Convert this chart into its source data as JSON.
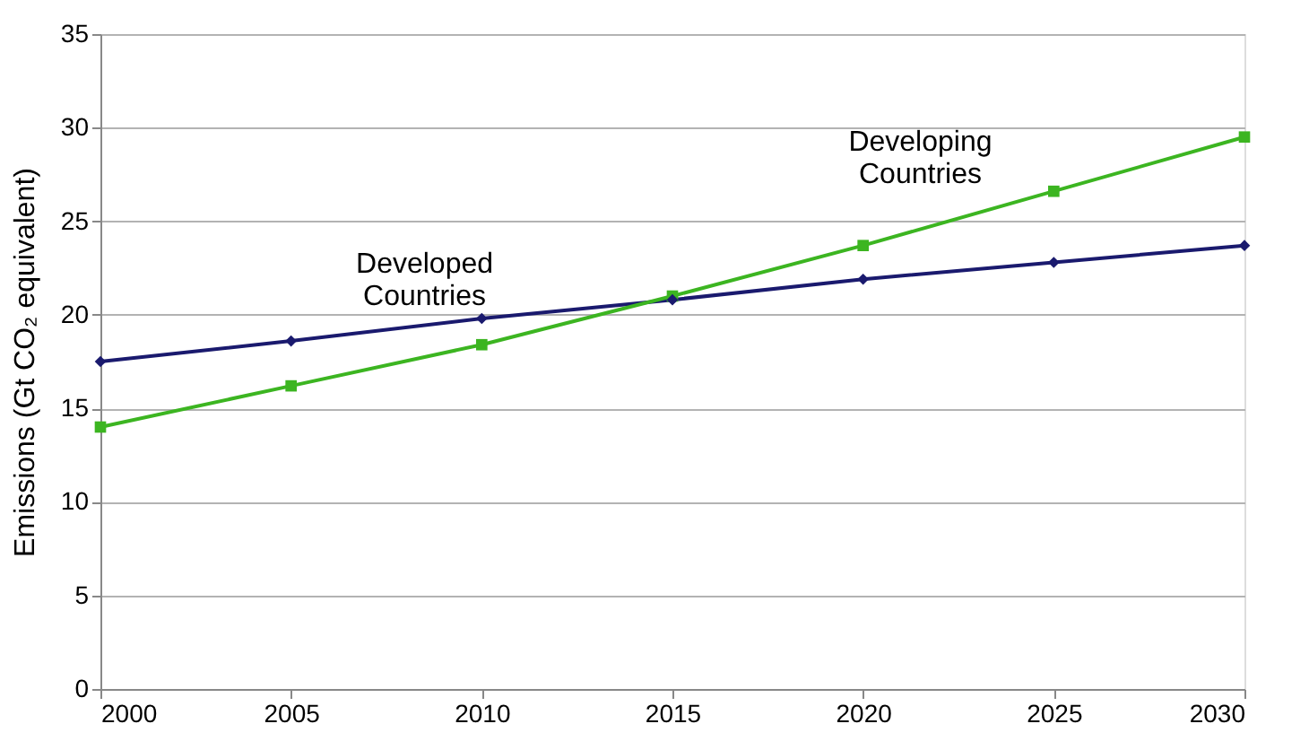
{
  "chart_data": {
    "type": "line",
    "ylabel": "Emissions (Gt CO₂ equivalent)",
    "x": [
      2000,
      2005,
      2010,
      2015,
      2020,
      2025,
      2030
    ],
    "series": [
      {
        "name": "Developed Countries",
        "color": "#1a1a6e",
        "marker": "diamond",
        "values": [
          17.5,
          18.6,
          19.8,
          20.8,
          21.9,
          22.8,
          23.7
        ]
      },
      {
        "name": "Developing Countries",
        "color": "#3cb521",
        "marker": "square",
        "values": [
          14.0,
          16.2,
          18.4,
          21.0,
          23.7,
          26.6,
          29.5
        ]
      }
    ],
    "xlim": [
      2000,
      2030
    ],
    "xticks": [
      2000,
      2005,
      2010,
      2015,
      2020,
      2025,
      2030
    ],
    "ylim": [
      0,
      35
    ],
    "yticks": [
      0,
      5,
      10,
      15,
      20,
      25,
      30,
      35
    ],
    "grid": "y",
    "line_style": "solid"
  }
}
